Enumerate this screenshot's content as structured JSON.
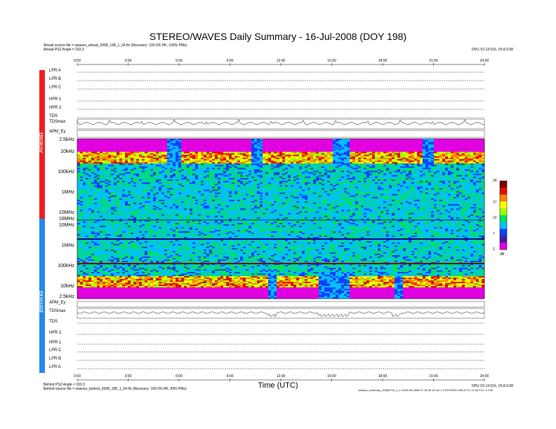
{
  "header": {
    "title": "STEREO/WAVES Daily Summary - 16-Jul-2008 (DOY 198)",
    "ahead_source": "Ahead source file = swaves_ahead_2008_198_1_04.fin (Recovery: 100.0% HK, 100% PMs)",
    "ahead_angle": "Ahead PSZ Angle = 333.3",
    "right_info": "DPU V2.14 016, V5.8.0.08"
  },
  "footer": {
    "behind_angle": "Behind PSZ Angle = 333.3",
    "behind_source": "Behind source file = swaves_behind_2008_198_1_04.fin (Recovery: 100.0% HK, 99% PMs)",
    "right_info": "DPU V2.14 016, V5.8.0.08",
    "right_info2": "swaves_summary_20080716_c_1 0.000 08 2008 07 18 05 10 ver 1.4 RHITR00 V06.20 07 17 00 FLC 1 4:53"
  },
  "bands": {
    "ahead": "Ahead",
    "behind": "Behind",
    "ahead_color": "#ee2020",
    "behind_color": "#2288ee"
  },
  "chart_data": {
    "type": "heatmap",
    "xlabel": "Time (UTC)",
    "x_ticks": [
      "0:00",
      "3:00",
      "6:00",
      "9:00",
      "12:00",
      "15:00",
      "18:00",
      "21:00",
      "24:00"
    ],
    "xlim_hours": [
      0,
      24
    ],
    "ahead_rows": [
      "LFR A",
      "LFR B",
      "LFR C",
      "HFR 1",
      "HFR 2",
      "TDS",
      "TDSmax",
      "APM_Ey"
    ],
    "behind_rows": [
      "APM_Ey",
      "TDSmax",
      "TDS",
      "HFR 2",
      "HFR 1",
      "LFR C",
      "LFR B",
      "LFR A"
    ],
    "ahead_freq_ticks": [
      "2.5kHz",
      "10kHz",
      "100kHz",
      "1MHz",
      "10MHz",
      "16MHz"
    ],
    "behind_freq_ticks": [
      "10MHz",
      "1MHz",
      "100kHz",
      "10kHz",
      "2.5kHz"
    ],
    "colorbar": {
      "ticks": [
        "2",
        "7",
        "12",
        "17",
        "24"
      ],
      "min": 2,
      "max": 24,
      "unit": "dB",
      "colors": [
        "#e000e0",
        "#4020a0",
        "#1040ff",
        "#00c0ff",
        "#00e060",
        "#a0ff00",
        "#ffff00",
        "#ff8000",
        "#e01000",
        "#800000"
      ]
    },
    "ahead_bursts_hours": [
      [
        5.2,
        6.0
      ],
      [
        10.1,
        10.8
      ],
      [
        15.0,
        16.0
      ],
      [
        20.2,
        21.0
      ]
    ],
    "behind_bursts_hours": [
      [
        11.2,
        11.7
      ],
      [
        14.2,
        16.0
      ],
      [
        18.6,
        19.1
      ]
    ]
  }
}
